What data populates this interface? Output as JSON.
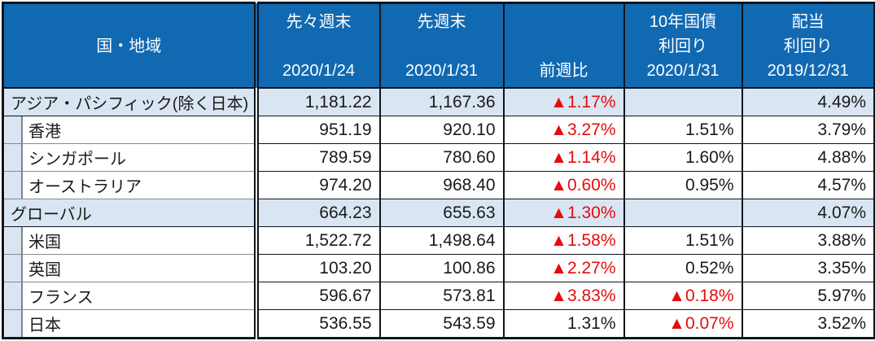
{
  "chart_data": {
    "type": "table",
    "columns": [
      {
        "id": "region",
        "lines": [
          "国・地域"
        ]
      },
      {
        "id": "prev2_close",
        "lines": [
          "先々週末",
          "",
          "2020/1/24"
        ]
      },
      {
        "id": "prev_close",
        "lines": [
          "先週末",
          "",
          "2020/1/31"
        ]
      },
      {
        "id": "wow_change",
        "lines": [
          "",
          "",
          "前週比"
        ]
      },
      {
        "id": "bond10y_yield",
        "lines": [
          "10年国債",
          "利回り",
          "2020/1/31"
        ]
      },
      {
        "id": "dividend_yield",
        "lines": [
          "配当",
          "利回り",
          "2019/12/31"
        ]
      }
    ],
    "rows": [
      {
        "label": "アジア・パシフィック(除く日本)",
        "level": "region",
        "cells": [
          {
            "v": "1,181.22"
          },
          {
            "v": "1,167.36"
          },
          {
            "v": "▲1.17%",
            "neg": true
          },
          {
            "v": ""
          },
          {
            "v": "4.49%"
          }
        ]
      },
      {
        "label": "香港",
        "level": "sub",
        "cells": [
          {
            "v": "951.19"
          },
          {
            "v": "920.10"
          },
          {
            "v": "▲3.27%",
            "neg": true
          },
          {
            "v": "1.51%"
          },
          {
            "v": "3.79%"
          }
        ]
      },
      {
        "label": "シンガポール",
        "level": "sub",
        "cells": [
          {
            "v": "789.59"
          },
          {
            "v": "780.60"
          },
          {
            "v": "▲1.14%",
            "neg": true
          },
          {
            "v": "1.60%"
          },
          {
            "v": "4.88%"
          }
        ]
      },
      {
        "label": "オーストラリア",
        "level": "sub",
        "cells": [
          {
            "v": "974.20"
          },
          {
            "v": "968.40"
          },
          {
            "v": "▲0.60%",
            "neg": true
          },
          {
            "v": "0.95%"
          },
          {
            "v": "4.57%"
          }
        ]
      },
      {
        "label": "グローバル",
        "level": "region",
        "cells": [
          {
            "v": "664.23"
          },
          {
            "v": "655.63"
          },
          {
            "v": "▲1.30%",
            "neg": true
          },
          {
            "v": ""
          },
          {
            "v": "4.07%"
          }
        ]
      },
      {
        "label": "米国",
        "level": "sub",
        "cells": [
          {
            "v": "1,522.72"
          },
          {
            "v": "1,498.64"
          },
          {
            "v": "▲1.58%",
            "neg": true
          },
          {
            "v": "1.51%"
          },
          {
            "v": "3.88%"
          }
        ]
      },
      {
        "label": "英国",
        "level": "sub",
        "cells": [
          {
            "v": "103.20"
          },
          {
            "v": "100.86"
          },
          {
            "v": "▲2.27%",
            "neg": true
          },
          {
            "v": "0.52%"
          },
          {
            "v": "3.35%"
          }
        ]
      },
      {
        "label": "フランス",
        "level": "sub",
        "cells": [
          {
            "v": "596.67"
          },
          {
            "v": "573.81"
          },
          {
            "v": "▲3.83%",
            "neg": true
          },
          {
            "v": "▲0.18%",
            "neg": true
          },
          {
            "v": "5.97%"
          }
        ]
      },
      {
        "label": "日本",
        "level": "sub",
        "cells": [
          {
            "v": "536.55"
          },
          {
            "v": "543.59"
          },
          {
            "v": "1.31%"
          },
          {
            "v": "▲0.07%",
            "neg": true
          },
          {
            "v": "3.52%"
          }
        ]
      }
    ],
    "negative_marker": "▲",
    "colors": {
      "header_bg": "#1169B2",
      "header_text": "#FFFFFF",
      "region_row_bg": "#D9E5F2",
      "negative_text": "#E60C0C",
      "grid_border": "#10151C"
    },
    "layout_hints": {
      "grid": true,
      "value_alignment": "right",
      "region_rows_highlighted": true
    }
  }
}
